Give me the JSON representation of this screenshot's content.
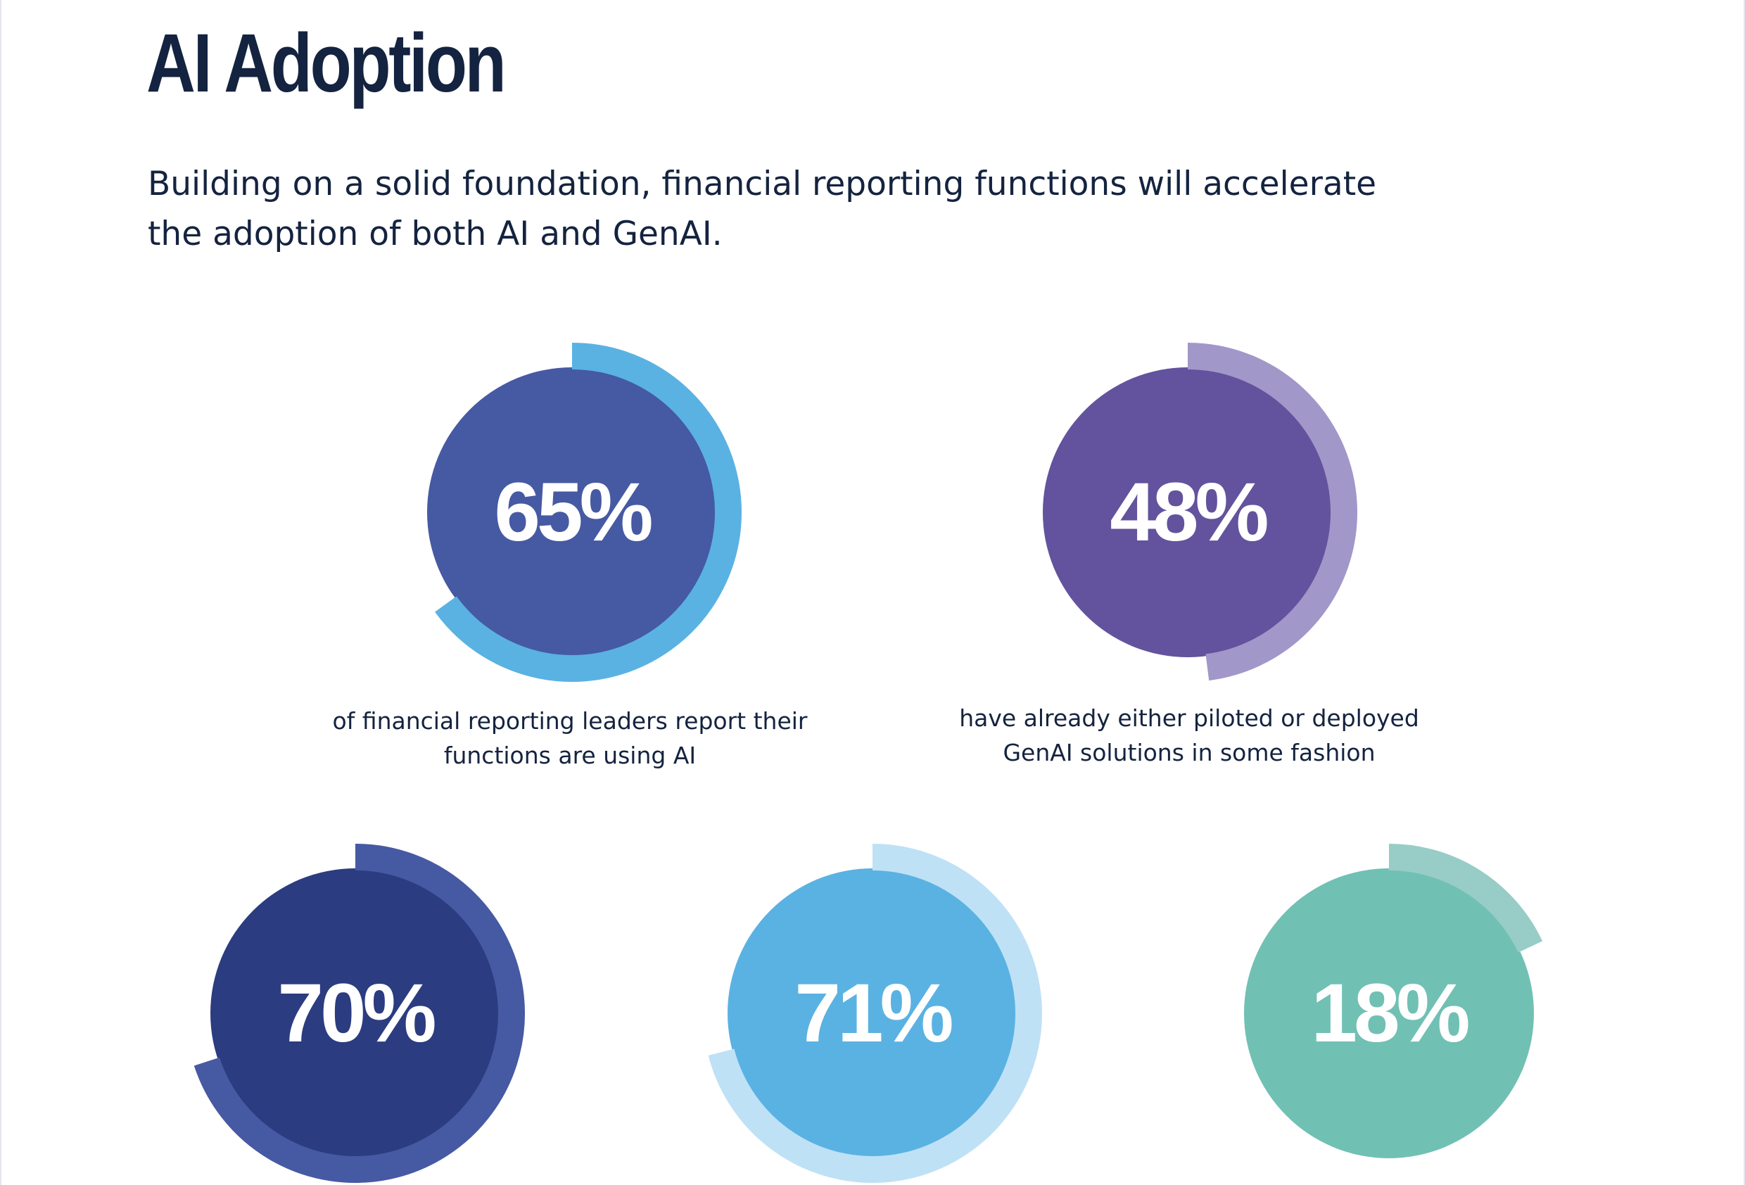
{
  "page": {
    "title": "AI Adoption",
    "intro": "Building on a solid foundation, financial reporting functions will accelerate the adoption of both AI and GenAI."
  },
  "chart_data": [
    {
      "type": "pie",
      "value": 65,
      "label": "65%",
      "caption": "of financial reporting leaders report their functions are using AI",
      "colors": {
        "disc": "#4659a3",
        "arc": "#5ab2e2"
      }
    },
    {
      "type": "pie",
      "value": 48,
      "label": "48%",
      "caption": "have already either piloted or deployed GenAI solutions in some fashion",
      "colors": {
        "disc": "#63529d",
        "arc": "#a297c9"
      }
    },
    {
      "type": "pie",
      "value": 70,
      "label": "70%",
      "caption": "",
      "colors": {
        "disc": "#2b3c80",
        "arc": "#4659a3"
      }
    },
    {
      "type": "pie",
      "value": 71,
      "label": "71%",
      "caption": "",
      "colors": {
        "disc": "#5ab2e2",
        "arc": "#bfe1f6"
      }
    },
    {
      "type": "pie",
      "value": 18,
      "label": "18%",
      "caption": "",
      "colors": {
        "disc": "#71c0b4",
        "arc": "#97cdc6"
      }
    }
  ]
}
